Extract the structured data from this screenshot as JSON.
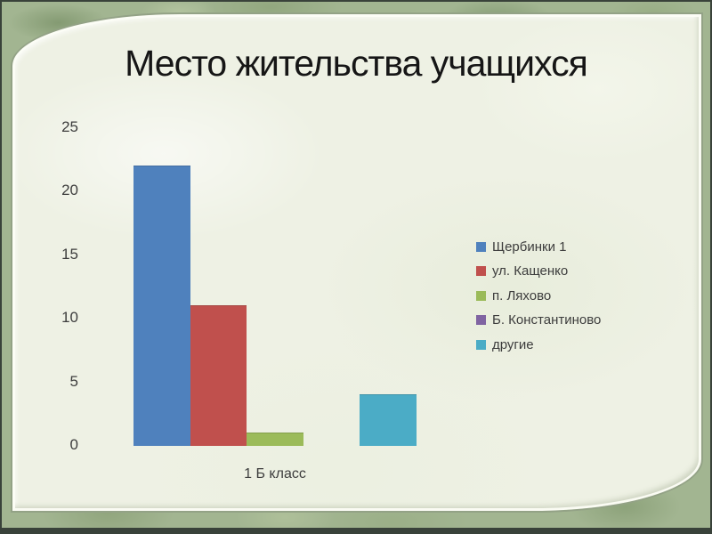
{
  "slide": {
    "title": "Место жительства учащихся"
  },
  "chart_data": {
    "type": "bar",
    "title": "Место жительства учащихся",
    "categories": [
      "1 Б класс"
    ],
    "series": [
      {
        "name": "Щербинки 1",
        "values": [
          22
        ],
        "color": "#4f81bd"
      },
      {
        "name": "ул. Кащенко",
        "values": [
          11
        ],
        "color": "#c0504d"
      },
      {
        "name": "п. Ляхово",
        "values": [
          1
        ],
        "color": "#9bbb59"
      },
      {
        "name": "Б. Константиново",
        "values": [
          0
        ],
        "color": "#8064a2"
      },
      {
        "name": "другие",
        "values": [
          4
        ],
        "color": "#4bacc6"
      }
    ],
    "xlabel": "",
    "ylabel": "",
    "ylim": [
      0,
      25
    ],
    "yticks": [
      0,
      5,
      10,
      15,
      20,
      25
    ],
    "grid": false,
    "axis_lines": false,
    "legend_position": "right"
  },
  "colors": {
    "title_text": "#161616",
    "axis_text": "#3d3d3d",
    "legend_text": "#3d3d3d",
    "frame_green": "#a2b591",
    "panel_background": "#eef1e4",
    "outer_border": "#39423a"
  }
}
